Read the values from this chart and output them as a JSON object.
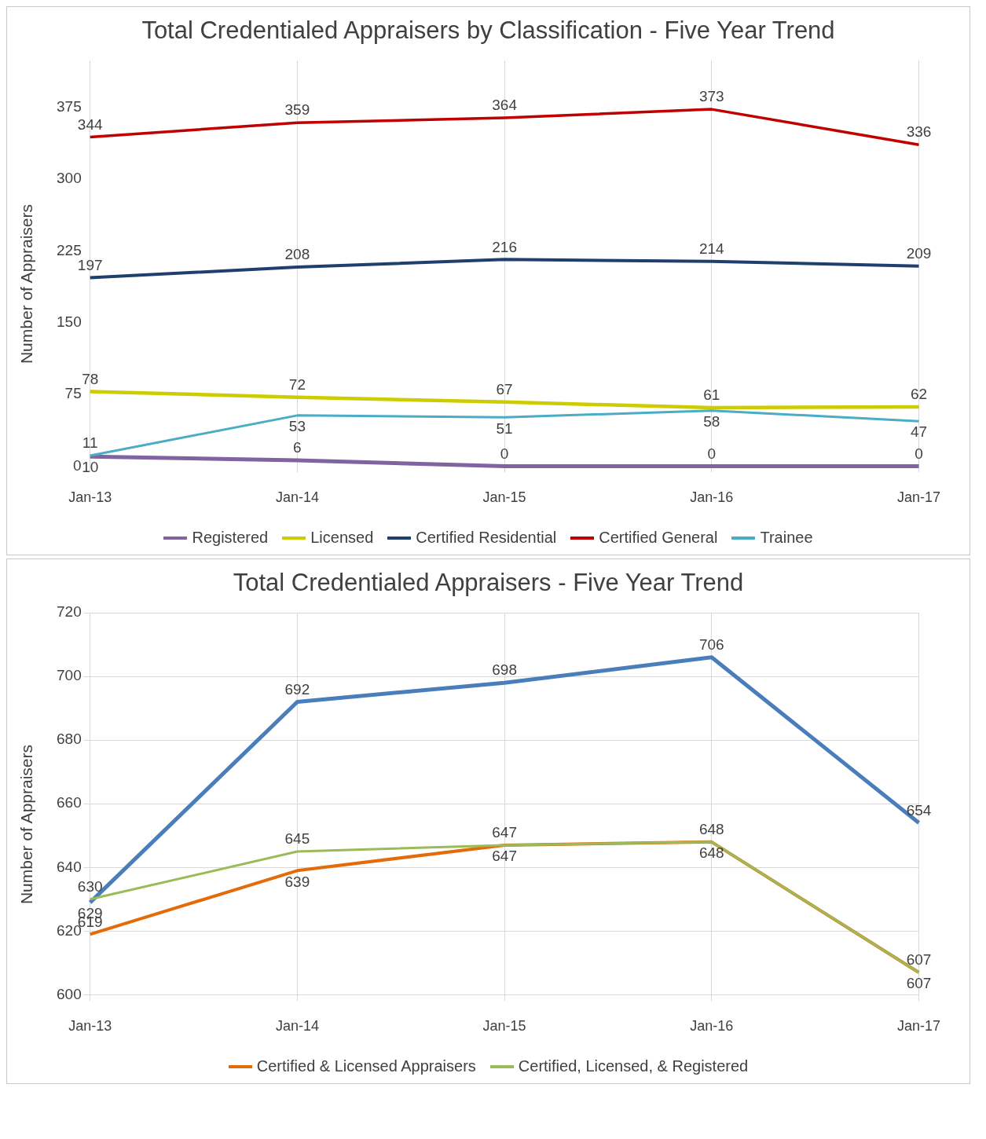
{
  "chart_data": [
    {
      "type": "line",
      "title": "Total Credentialed Appraisers by Classification - Five Year Trend",
      "ylabel": "Number of Appraisers",
      "categories": [
        "Jan-13",
        "Jan-14",
        "Jan-15",
        "Jan-16",
        "Jan-17"
      ],
      "series": [
        {
          "name": "Registered",
          "color": "#8064a2",
          "values": [
            10,
            6,
            0,
            0,
            0
          ]
        },
        {
          "name": "Licensed",
          "color": "#cccc00",
          "values": [
            78,
            72,
            67,
            61,
            62
          ]
        },
        {
          "name": "Certified Residential",
          "color": "#1f3f6e",
          "values": [
            197,
            208,
            216,
            214,
            209
          ]
        },
        {
          "name": "Certified General",
          "color": "#c00000",
          "values": [
            344,
            359,
            364,
            373,
            336
          ]
        },
        {
          "name": "Trainee",
          "color": "#4bacc6",
          "values": [
            11,
            53,
            51,
            58,
            47
          ]
        }
      ],
      "ylim": [
        0,
        424
      ],
      "yticks": [
        0,
        75,
        150,
        225,
        300,
        375
      ],
      "grid": "x",
      "legend": "bottom",
      "marker": "none",
      "data_labels": true
    },
    {
      "type": "line",
      "title": "Total Credentialed Appraisers - Five Year Trend",
      "ylabel": "Number of Appraisers",
      "categories": [
        "Jan-13",
        "Jan-14",
        "Jan-15",
        "Jan-16",
        "Jan-17"
      ],
      "series": [
        {
          "color": "#4a7ebb",
          "values": [
            629,
            692,
            698,
            706,
            654
          ]
        },
        {
          "name": "Certified & Licensed Appraisers",
          "color": "#e36c09",
          "values": [
            619,
            639,
            647,
            648,
            607
          ]
        },
        {
          "name": "Certified, Licensed, & Registered",
          "color": "#9bbb59",
          "values": [
            630,
            645,
            647,
            648,
            607
          ]
        }
      ],
      "ylim": [
        600,
        720
      ],
      "yticks": [
        600,
        620,
        640,
        660,
        680,
        700,
        720
      ],
      "grid": true,
      "legend": "bottom",
      "marker": "none",
      "data_labels": true
    }
  ]
}
